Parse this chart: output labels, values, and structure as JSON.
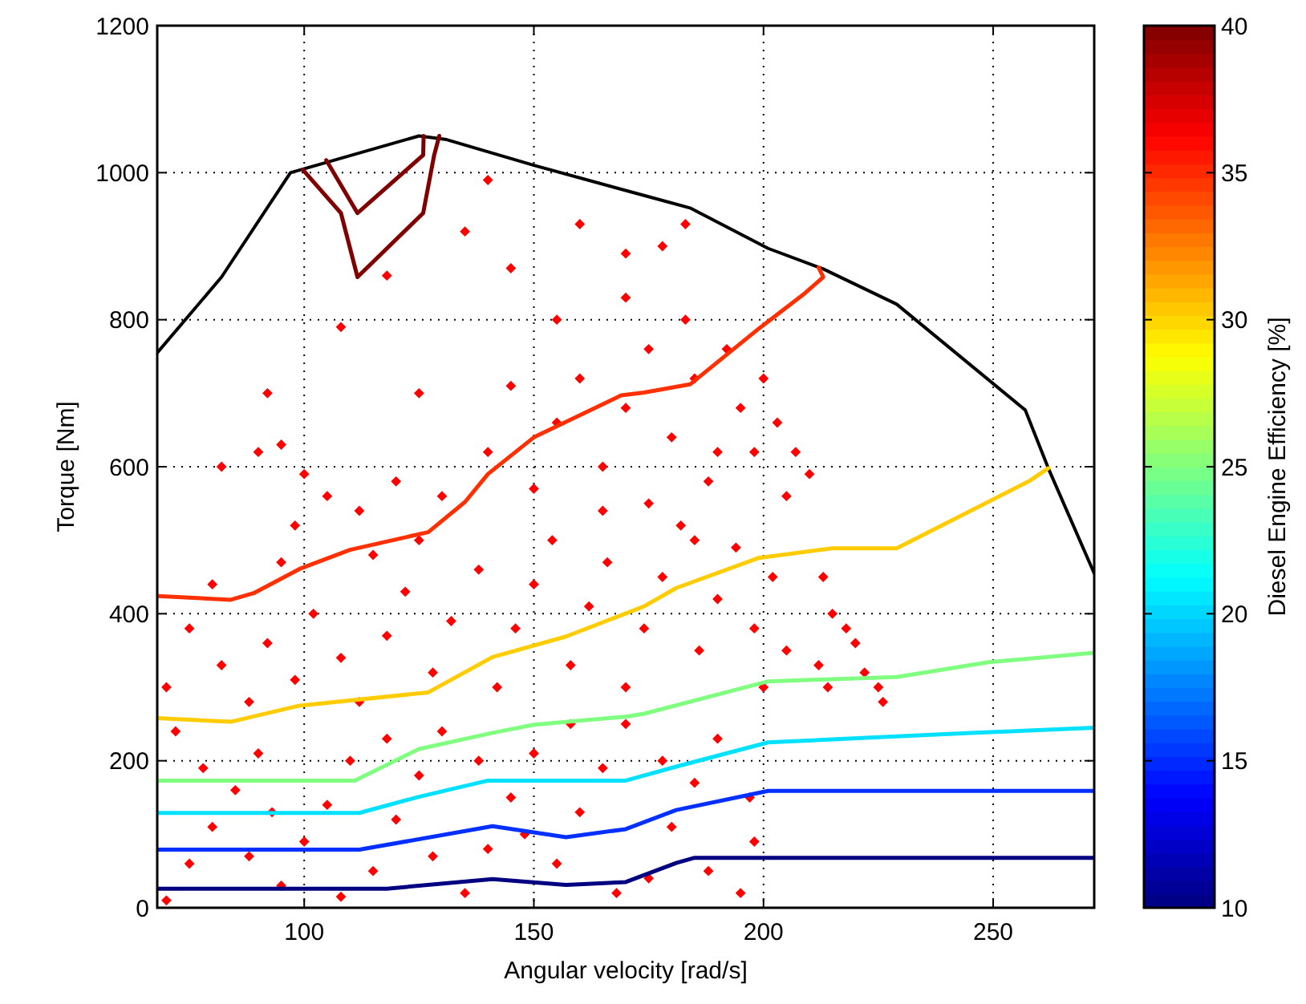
{
  "chart_data": {
    "type": "line",
    "xlabel": "Angular velocity [rad/s]",
    "ylabel": "Torque [Nm]",
    "clabel": "Diesel Engine Efficiency [%]",
    "xlim": [
      68,
      272
    ],
    "ylim": [
      0,
      1200
    ],
    "xticks": [
      100,
      150,
      200,
      250
    ],
    "yticks": [
      0,
      200,
      400,
      600,
      800,
      1000,
      1200
    ],
    "clim": [
      10,
      40
    ],
    "cticks": [
      10,
      15,
      20,
      25,
      30,
      35,
      40
    ],
    "grid": true,
    "series": [
      {
        "type": "scatter",
        "color": "#ff0000",
        "marker": "diamond",
        "x": [
          70,
          75,
          80,
          85,
          90,
          95,
          100,
          105,
          110,
          115,
          120,
          125,
          130,
          135,
          140,
          145,
          150,
          155,
          160,
          165,
          170,
          175,
          180,
          185,
          190,
          195,
          198,
          72,
          78,
          88,
          93,
          108,
          118,
          128,
          138,
          148,
          158,
          168,
          178,
          188,
          197,
          70,
          75,
          82,
          88,
          92,
          98,
          102,
          108,
          112,
          118,
          122,
          128,
          132,
          138,
          142,
          146,
          150,
          154,
          158,
          162,
          166,
          170,
          174,
          178,
          182,
          186,
          190,
          194,
          198,
          202,
          200,
          205,
          80,
          95,
          115,
          125,
          82,
          90,
          95,
          100,
          98,
          105,
          112,
          120,
          130,
          140,
          150,
          155,
          160,
          165,
          170,
          175,
          180,
          183,
          185,
          188,
          192,
          195,
          198,
          200,
          203,
          205,
          207,
          210,
          165,
          175,
          185,
          190,
          92,
          108,
          118,
          135,
          140,
          145,
          160,
          170,
          178,
          183,
          125,
          145,
          155,
          170,
          213,
          215,
          218,
          220,
          222,
          225,
          226,
          214,
          212
        ],
        "values": [
          10,
          60,
          110,
          160,
          210,
          30,
          90,
          140,
          200,
          50,
          120,
          180,
          240,
          20,
          80,
          150,
          210,
          60,
          130,
          190,
          250,
          40,
          110,
          170,
          230,
          20,
          90,
          240,
          190,
          70,
          130,
          15,
          230,
          70,
          200,
          100,
          250,
          20,
          200,
          50,
          150,
          300,
          380,
          330,
          280,
          360,
          310,
          400,
          340,
          280,
          370,
          430,
          320,
          390,
          460,
          300,
          380,
          440,
          500,
          330,
          410,
          470,
          300,
          380,
          450,
          520,
          350,
          420,
          490,
          380,
          450,
          300,
          350,
          440,
          470,
          480,
          500,
          600,
          620,
          630,
          590,
          520,
          560,
          540,
          580,
          560,
          620,
          570,
          660,
          720,
          600,
          680,
          760,
          640,
          800,
          720,
          580,
          760,
          680,
          620,
          720,
          660,
          560,
          620,
          590,
          540,
          550,
          500,
          620,
          700,
          790,
          860,
          920,
          990,
          870,
          930,
          890,
          900,
          930,
          700,
          710,
          800,
          830,
          450,
          400,
          380,
          360,
          320,
          300,
          280,
          300,
          330
        ]
      },
      {
        "type": "line",
        "color": "#000000",
        "x": [
          68,
          82,
          97,
          125,
          131,
          150,
          174,
          184,
          201,
          213,
          229,
          257,
          262,
          272
        ],
        "values": [
          755,
          858,
          1000,
          1050,
          1045,
          1010,
          969,
          952,
          897,
          869,
          821,
          677,
          598,
          455
        ]
      },
      {
        "type": "line",
        "color": "#800000",
        "x": [
          99.7,
          108,
          111.6,
          125.9,
          128.3,
          129.4
        ],
        "values": [
          1004,
          945,
          858,
          945,
          1024,
          1050
        ]
      },
      {
        "type": "line",
        "color": "#800000",
        "x": [
          104.8,
          111.6,
          125.9,
          126
        ],
        "values": [
          1017,
          945,
          1024,
          1050
        ]
      },
      {
        "type": "line",
        "color": "#ff3000",
        "x": [
          68,
          84,
          89,
          99,
          110,
          127,
          135,
          140,
          150,
          169,
          174,
          184,
          199,
          209,
          213,
          212
        ],
        "values": [
          424,
          419,
          428,
          461,
          487,
          511,
          552,
          590,
          640,
          697,
          701,
          712,
          788,
          836,
          858,
          871
        ]
      },
      {
        "type": "line",
        "color": "#ffcc00",
        "x": [
          68,
          84,
          99,
          127,
          141,
          157,
          174,
          181,
          199,
          215,
          229,
          258,
          262
        ],
        "values": [
          258,
          253,
          275,
          293,
          341,
          369,
          410,
          435,
          476,
          489,
          489,
          581,
          598
        ]
      },
      {
        "type": "line",
        "color": "#80ff80",
        "x": [
          68,
          111,
          125,
          141,
          150,
          170,
          174,
          201,
          229,
          249,
          272
        ],
        "values": [
          173,
          173,
          216,
          238,
          249,
          260,
          264,
          308,
          314,
          334,
          347
        ]
      },
      {
        "type": "line",
        "color": "#00e0ff",
        "x": [
          68,
          112,
          125,
          140,
          170,
          181,
          201,
          246,
          272
        ],
        "values": [
          129,
          129,
          151,
          173,
          173,
          192,
          225,
          238,
          245
        ]
      },
      {
        "type": "line",
        "color": "#0030ff",
        "x": [
          68,
          112,
          141,
          157,
          170,
          181,
          201,
          272
        ],
        "values": [
          79,
          79,
          111,
          96,
          107,
          133,
          159,
          159
        ]
      },
      {
        "type": "line",
        "color": "#000080",
        "x": [
          68,
          118,
          141,
          157,
          170,
          181,
          185,
          272
        ],
        "values": [
          26,
          26,
          39,
          31,
          35,
          61,
          68,
          68
        ]
      }
    ]
  }
}
